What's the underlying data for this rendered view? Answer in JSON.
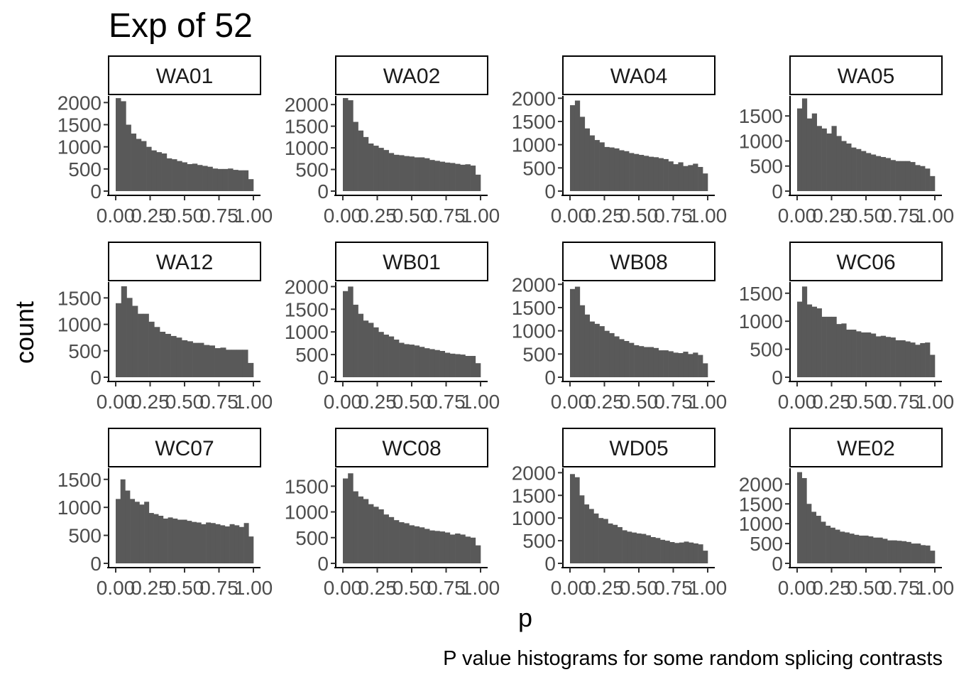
{
  "chart_data": {
    "type": "bar",
    "title": "Exp of 52",
    "xlabel": "p",
    "ylabel": "count",
    "caption": "P value histograms for some random splicing contrasts",
    "xlim": [
      0,
      1
    ],
    "x_ticks": [
      "0.00",
      "0.25",
      "0.50",
      "0.75",
      "1.00"
    ],
    "bins": 30,
    "panels": [
      {
        "name": "WA01",
        "y_ticks": [
          0,
          500,
          1000,
          1500,
          2000
        ],
        "ymax": 2150,
        "values": [
          2100,
          2030,
          1500,
          1300,
          1180,
          1130,
          1000,
          920,
          880,
          850,
          740,
          720,
          680,
          650,
          610,
          620,
          590,
          570,
          550,
          510,
          500,
          500,
          510,
          480,
          470,
          470,
          270
        ]
      },
      {
        "name": "WA02",
        "y_ticks": [
          0,
          500,
          1000,
          1500,
          2000
        ],
        "ymax": 2200,
        "values": [
          2150,
          2100,
          1600,
          1400,
          1250,
          1100,
          1050,
          1000,
          950,
          880,
          840,
          830,
          810,
          800,
          780,
          780,
          760,
          720,
          700,
          680,
          660,
          650,
          630,
          610,
          620,
          590,
          380
        ]
      },
      {
        "name": "WA04",
        "y_ticks": [
          0,
          500,
          1000,
          1500,
          2000
        ],
        "ymax": 2050,
        "values": [
          1850,
          1950,
          1600,
          1350,
          1200,
          1100,
          1050,
          950,
          940,
          920,
          880,
          860,
          820,
          800,
          780,
          760,
          740,
          730,
          710,
          690,
          640,
          580,
          620,
          540,
          560,
          590,
          520,
          380
        ]
      },
      {
        "name": "WA05",
        "y_ticks": [
          0,
          500,
          1000,
          1500
        ],
        "ymax": 1900,
        "values": [
          1650,
          1850,
          1450,
          1550,
          1300,
          1250,
          1150,
          1300,
          1100,
          1000,
          950,
          870,
          840,
          800,
          760,
          730,
          700,
          680,
          660,
          620,
          600,
          600,
          600,
          580,
          520,
          500,
          450,
          300
        ]
      },
      {
        "name": "WA12",
        "y_ticks": [
          0,
          500,
          1000,
          1500
        ],
        "ymax": 1800,
        "values": [
          1400,
          1720,
          1500,
          1350,
          1200,
          1200,
          1050,
          950,
          860,
          820,
          780,
          750,
          700,
          680,
          650,
          650,
          610,
          600,
          550,
          560,
          520,
          520,
          520,
          520,
          270
        ]
      },
      {
        "name": "WB01",
        "y_ticks": [
          0,
          500,
          1000,
          1500,
          2000
        ],
        "ymax": 2100,
        "values": [
          1900,
          2000,
          1600,
          1400,
          1250,
          1200,
          1100,
          1000,
          940,
          900,
          830,
          760,
          730,
          720,
          700,
          670,
          640,
          620,
          600,
          580,
          540,
          520,
          510,
          500,
          470,
          470,
          310
        ]
      },
      {
        "name": "WB08",
        "y_ticks": [
          0,
          500,
          1000,
          1500,
          2000
        ],
        "ymax": 2050,
        "values": [
          1900,
          1950,
          1550,
          1350,
          1200,
          1150,
          1100,
          1000,
          950,
          880,
          820,
          780,
          740,
          690,
          670,
          650,
          650,
          630,
          580,
          580,
          560,
          530,
          520,
          550,
          500,
          530,
          480,
          300
        ]
      },
      {
        "name": "WC06",
        "y_ticks": [
          0,
          500,
          1000,
          1500
        ],
        "ymax": 1700,
        "values": [
          1350,
          1620,
          1300,
          1260,
          1230,
          1080,
          1080,
          1080,
          950,
          960,
          850,
          850,
          820,
          800,
          800,
          780,
          730,
          740,
          720,
          710,
          660,
          660,
          640,
          620,
          580,
          610,
          620,
          400
        ]
      },
      {
        "name": "WC07",
        "y_ticks": [
          0,
          500,
          1000,
          1500
        ],
        "ymax": 1700,
        "values": [
          1150,
          1500,
          1300,
          1150,
          1100,
          1050,
          1100,
          900,
          880,
          850,
          800,
          820,
          800,
          780,
          780,
          760,
          740,
          730,
          700,
          730,
          720,
          700,
          680,
          660,
          700,
          680,
          650,
          720,
          480
        ]
      },
      {
        "name": "WC08",
        "y_ticks": [
          0,
          500,
          1000,
          1500
        ],
        "ymax": 1850,
        "values": [
          1650,
          1750,
          1400,
          1300,
          1250,
          1150,
          1100,
          1050,
          950,
          900,
          840,
          800,
          780,
          740,
          720,
          700,
          670,
          640,
          630,
          620,
          600,
          560,
          580,
          560,
          520,
          500,
          350
        ]
      },
      {
        "name": "WD05",
        "y_ticks": [
          0,
          500,
          1000,
          1500,
          2000
        ],
        "ymax": 2100,
        "values": [
          1970,
          1900,
          1500,
          1300,
          1200,
          1100,
          1000,
          980,
          880,
          850,
          800,
          730,
          700,
          680,
          660,
          650,
          620,
          580,
          560,
          520,
          500,
          470,
          450,
          460,
          480,
          460,
          440,
          420,
          280
        ]
      },
      {
        "name": "WE02",
        "y_ticks": [
          0,
          500,
          1000,
          1500,
          2000
        ],
        "ymax": 2400,
        "values": [
          2300,
          2150,
          1500,
          1300,
          1200,
          1050,
          950,
          900,
          850,
          800,
          780,
          750,
          720,
          700,
          700,
          680,
          650,
          650,
          620,
          580,
          580,
          570,
          560,
          540,
          500,
          500,
          460,
          450,
          320
        ]
      }
    ]
  }
}
